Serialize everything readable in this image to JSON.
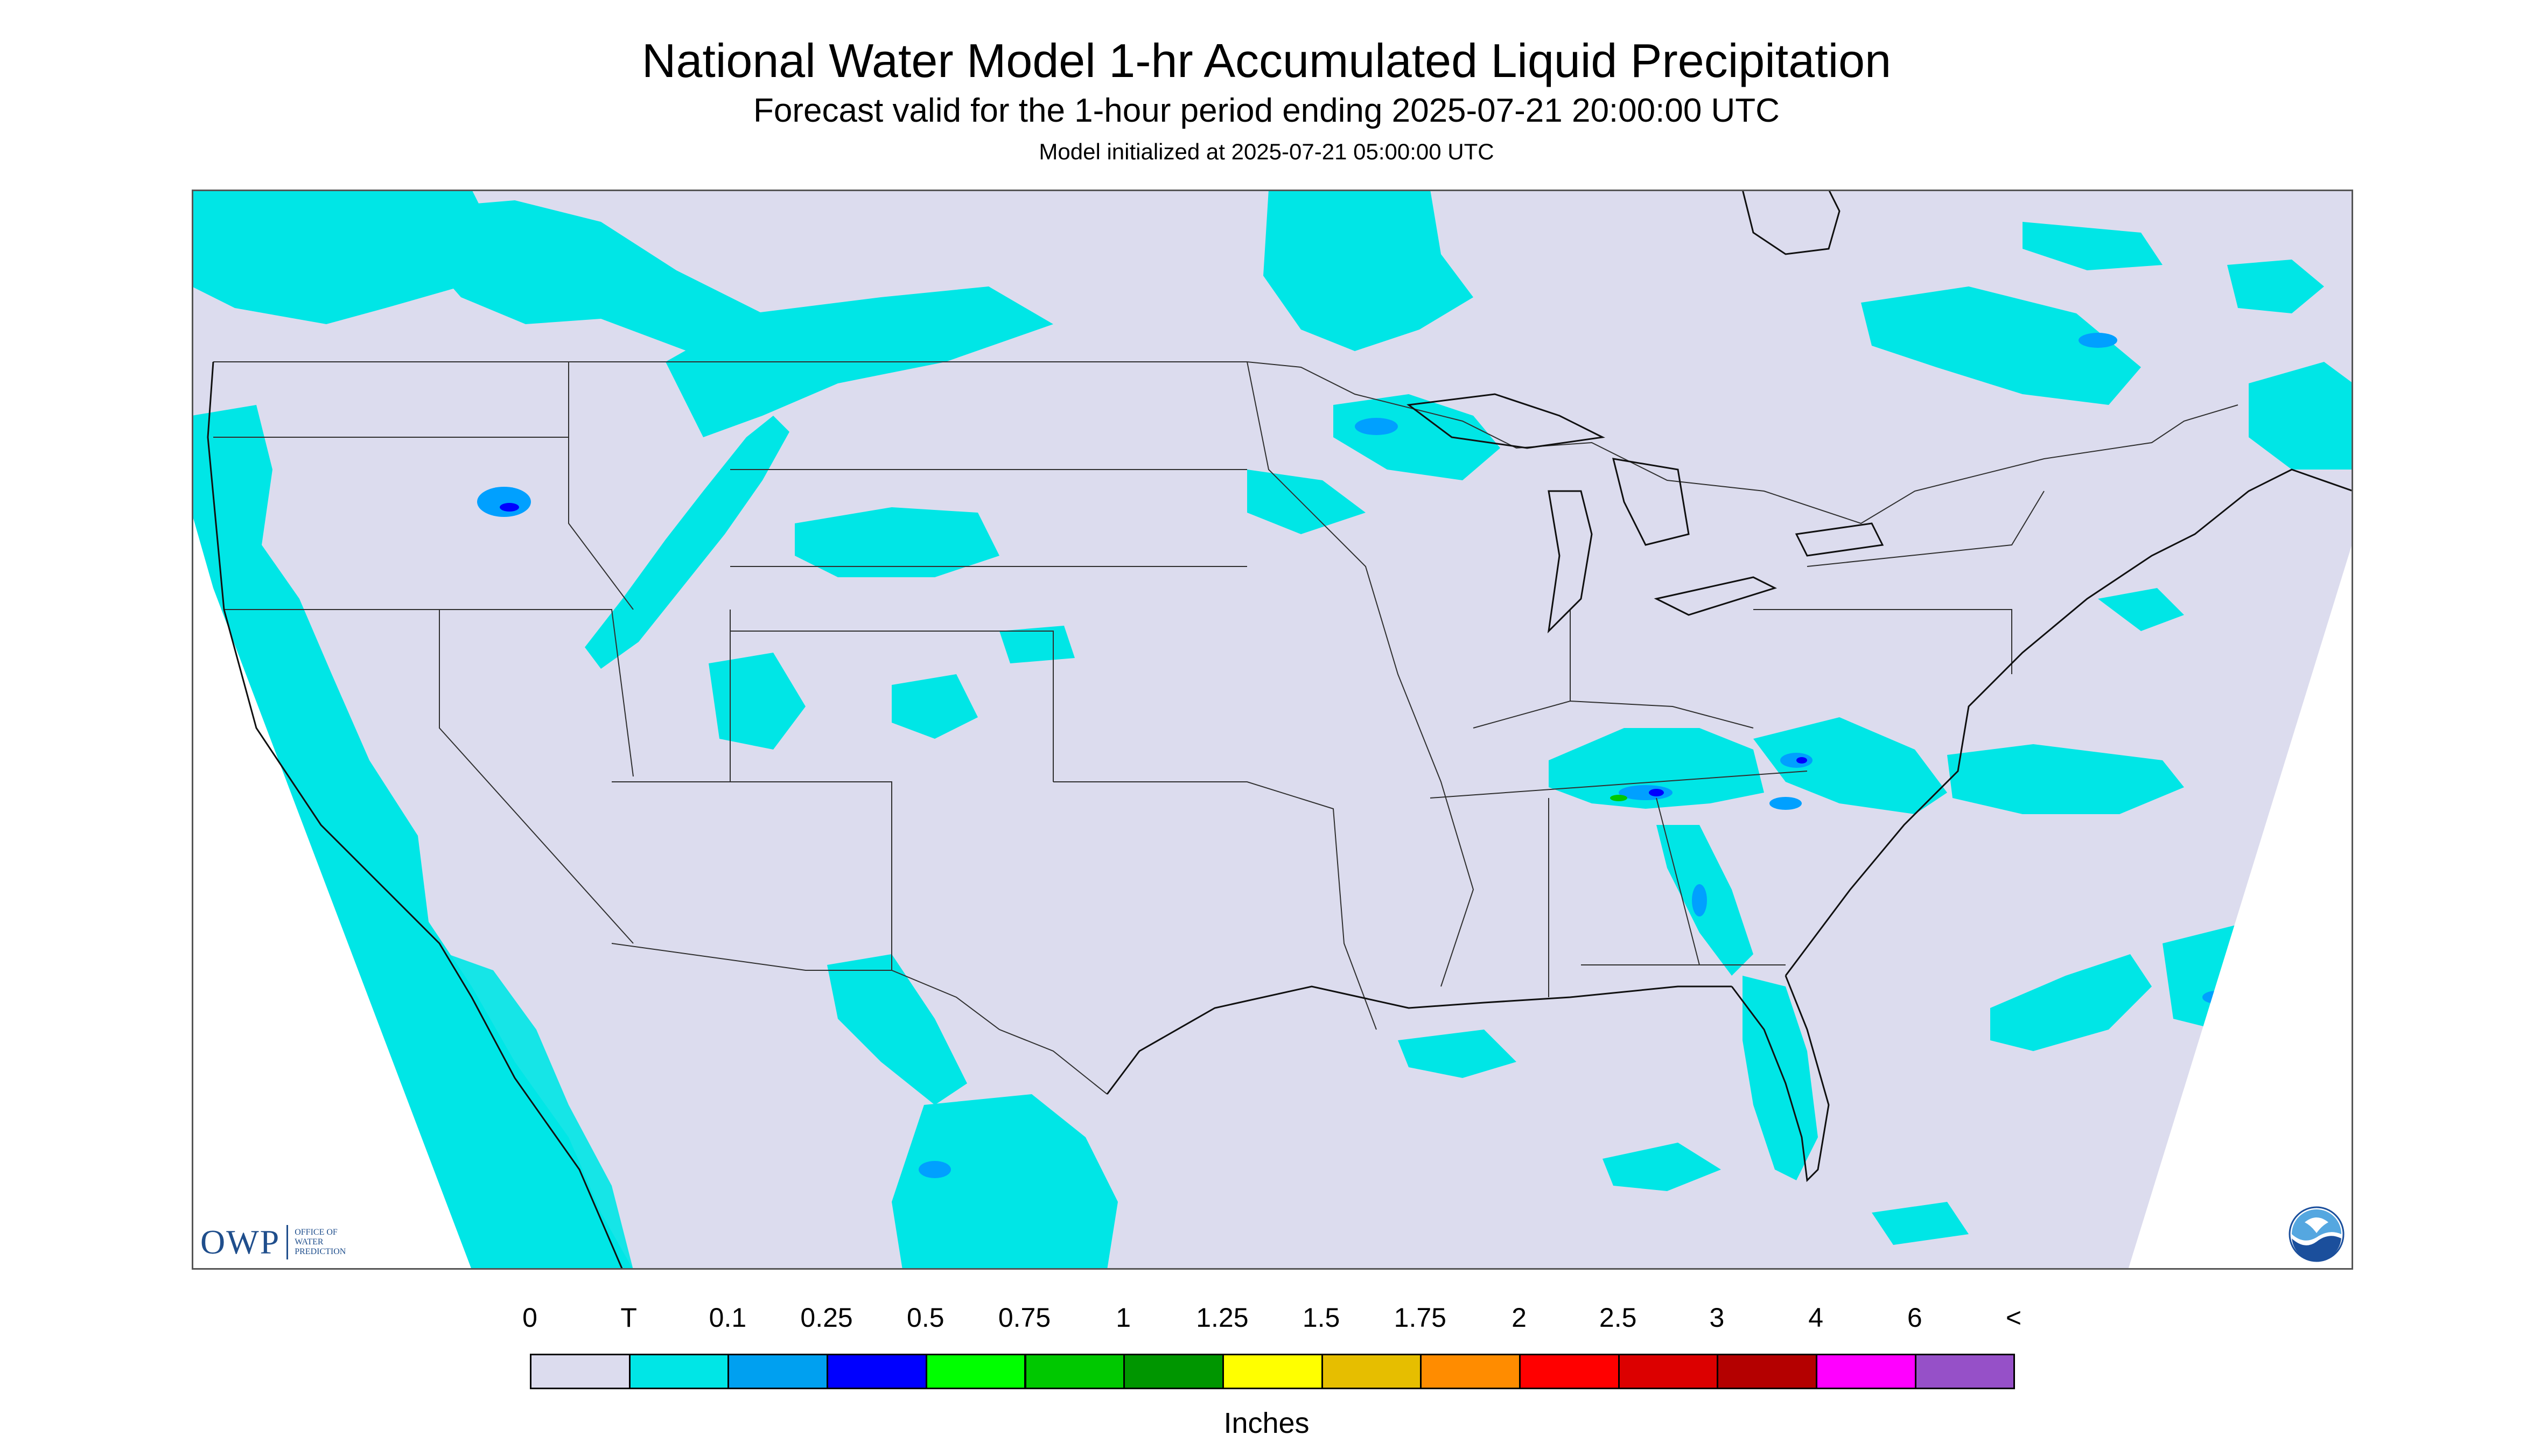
{
  "header": {
    "title": "National Water Model 1-hr Accumulated Liquid Precipitation",
    "subtitle": "Forecast valid for the 1-hour period ending 2025-07-21 20:00:00 UTC",
    "init_line": "Model initialized at 2025-07-21 05:00:00 UTC"
  },
  "colors": {
    "background": "#dcdcee",
    "trace": "#00e6e6",
    "light_blue": "#00a0ff",
    "blue": "#0000ff",
    "green": "#00c800",
    "yellow": "#e6e600",
    "boundary": "#303030"
  },
  "legend": {
    "tick_labels": [
      "0",
      "T",
      "0.1",
      "0.25",
      "0.5",
      "0.75",
      "1",
      "1.25",
      "1.5",
      "1.75",
      "2",
      "2.5",
      "3",
      "4",
      "6",
      "<"
    ],
    "swatch_colors": [
      "#dcdcee",
      "#00e6e6",
      "#00a0f0",
      "#0000ff",
      "#00ff00",
      "#00c800",
      "#009600",
      "#ffff00",
      "#e6be00",
      "#ff8c00",
      "#ff0000",
      "#dc0000",
      "#b40000",
      "#ff00ff",
      "#9650c8"
    ],
    "units": "Inches"
  },
  "logos": {
    "owp_big": "OWP",
    "owp_lines": [
      "OFFICE OF",
      "WATER",
      "PREDICTION"
    ],
    "noaa_icon": "noaa-logo-icon"
  }
}
